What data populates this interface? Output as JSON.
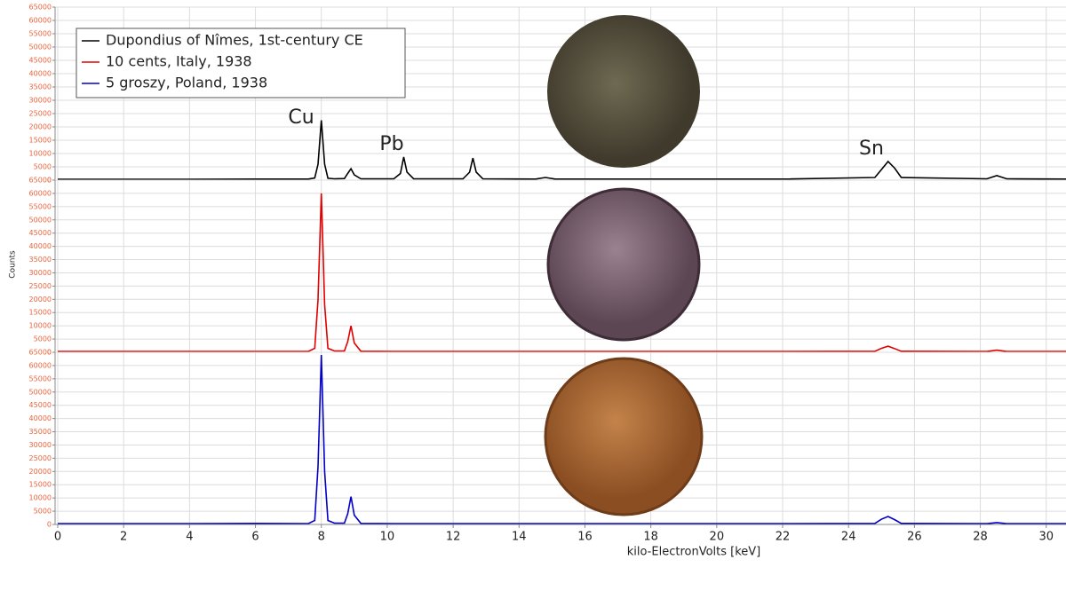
{
  "chart_data": [
    {
      "type": "line",
      "annotations": [
        "Cu",
        "Pb",
        "Sn"
      ],
      "x": [
        0,
        2,
        4,
        6,
        7.6,
        7.8,
        7.9,
        8.0,
        8.1,
        8.2,
        8.4,
        8.7,
        8.8,
        8.9,
        9.0,
        9.2,
        10.2,
        10.4,
        10.5,
        10.6,
        10.8,
        12.3,
        12.5,
        12.6,
        12.7,
        12.9,
        14.5,
        14.8,
        15.1,
        18,
        22,
        24.8,
        25.0,
        25.2,
        25.4,
        25.6,
        28.2,
        28.5,
        28.8,
        30.6
      ],
      "series": [
        {
          "name": "Dupondius of Nîmes, 1st-century CE",
          "color": "#000000",
          "values": [
            300,
            300,
            300,
            400,
            400,
            800,
            6000,
            22500,
            6000,
            700,
            500,
            600,
            2500,
            4300,
            2000,
            500,
            500,
            2500,
            8700,
            3000,
            500,
            500,
            3000,
            8300,
            3000,
            500,
            400,
            1000,
            400,
            400,
            400,
            1000,
            4000,
            7000,
            4500,
            1000,
            500,
            1700,
            500,
            400
          ]
        }
      ],
      "xlim": [
        0,
        30.6
      ],
      "xticks": [
        0,
        2,
        4,
        6,
        8,
        10,
        12,
        14,
        16,
        18,
        20,
        22,
        24,
        26,
        28,
        30
      ],
      "ylim": [
        0,
        65000
      ],
      "yticks": [
        0,
        5000,
        10000,
        15000,
        20000,
        25000,
        30000,
        35000,
        40000,
        45000,
        50000,
        55000,
        60000,
        65000
      ],
      "ylabel": "Counts",
      "grid": true
    },
    {
      "type": "line",
      "x": [
        0,
        2,
        4,
        6,
        7.6,
        7.8,
        7.9,
        8.0,
        8.1,
        8.2,
        8.4,
        8.7,
        8.8,
        8.9,
        9.0,
        9.2,
        10.2,
        10.4,
        10.5,
        10.6,
        10.8,
        12.3,
        12.5,
        12.6,
        12.7,
        12.9,
        14.5,
        14.8,
        15.1,
        18,
        22,
        24.8,
        25.0,
        25.2,
        25.4,
        25.6,
        28.2,
        28.5,
        28.8,
        30.6
      ],
      "series": [
        {
          "name": "10 cents, Italy, 1938",
          "color": "#e00000",
          "values": [
            300,
            300,
            300,
            300,
            300,
            1500,
            20000,
            60000,
            18000,
            1500,
            500,
            500,
            4000,
            10000,
            3500,
            400,
            300,
            300,
            300,
            300,
            300,
            300,
            300,
            300,
            300,
            300,
            300,
            300,
            300,
            300,
            300,
            400,
            1500,
            2300,
            1400,
            400,
            300,
            800,
            300,
            300
          ]
        }
      ],
      "xlim": [
        0,
        30.6
      ],
      "xticks": [
        0,
        2,
        4,
        6,
        8,
        10,
        12,
        14,
        16,
        18,
        20,
        22,
        24,
        26,
        28,
        30
      ],
      "ylim": [
        0,
        65000
      ],
      "yticks": [
        0,
        5000,
        10000,
        15000,
        20000,
        25000,
        30000,
        35000,
        40000,
        45000,
        50000,
        55000,
        60000,
        65000
      ],
      "grid": true
    },
    {
      "type": "line",
      "x": [
        0,
        2,
        4,
        6,
        7.6,
        7.8,
        7.9,
        8.0,
        8.1,
        8.2,
        8.4,
        8.7,
        8.8,
        8.9,
        9.0,
        9.2,
        10.2,
        10.4,
        10.5,
        10.6,
        10.8,
        12.3,
        12.5,
        12.6,
        12.7,
        12.9,
        14.5,
        14.8,
        15.1,
        18,
        22,
        24.8,
        25.0,
        25.2,
        25.4,
        25.6,
        28.2,
        28.5,
        28.8,
        30.6
      ],
      "series": [
        {
          "name": "5 groszy, Poland, 1938",
          "color": "#0000c8",
          "values": [
            300,
            300,
            300,
            400,
            300,
            1500,
            22000,
            64000,
            20000,
            1500,
            500,
            500,
            4000,
            10500,
            3500,
            400,
            300,
            300,
            300,
            300,
            300,
            300,
            300,
            300,
            300,
            300,
            300,
            300,
            300,
            300,
            300,
            400,
            2000,
            3000,
            1800,
            400,
            300,
            700,
            300,
            300
          ]
        }
      ],
      "xlim": [
        0,
        30.6
      ],
      "xticks": [
        0,
        2,
        4,
        6,
        8,
        10,
        12,
        14,
        16,
        18,
        20,
        22,
        24,
        26,
        28,
        30
      ],
      "ylim": [
        0,
        65000
      ],
      "yticks": [
        0,
        5000,
        10000,
        15000,
        20000,
        25000,
        30000,
        35000,
        40000,
        45000,
        50000,
        55000,
        60000,
        65000
      ],
      "xlabel": "kilo-ElectronVolts [keV]",
      "grid": true
    }
  ]
}
